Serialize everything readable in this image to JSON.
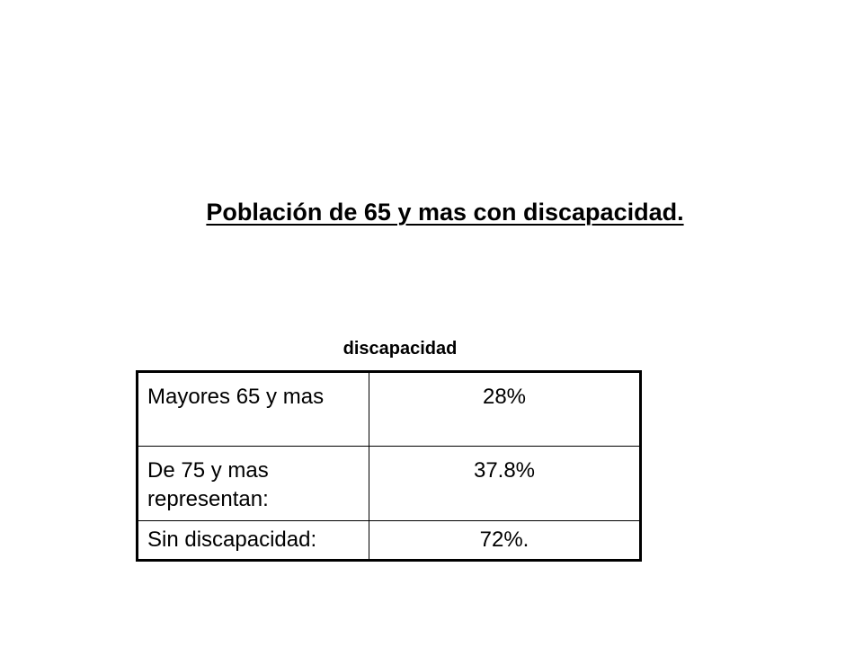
{
  "slide": {
    "title": "Población de 65 y mas con discapacidad.",
    "table_caption": "discapacidad",
    "table": {
      "rows": [
        {
          "label": "Mayores 65 y mas",
          "value": "28%"
        },
        {
          "label": "De 75 y mas representan:",
          "value": "37.8%"
        },
        {
          "label": "Sin discapacidad:",
          "value": "72%."
        }
      ]
    }
  }
}
